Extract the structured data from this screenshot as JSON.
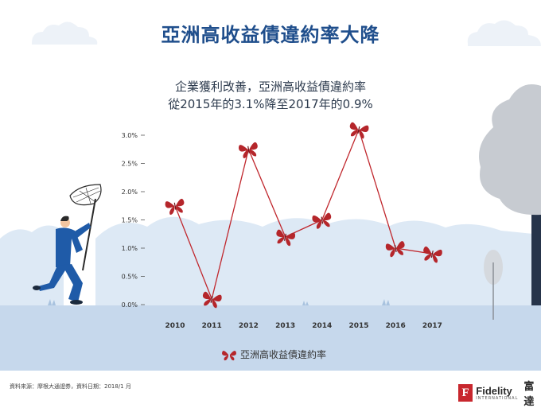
{
  "title": "亞洲高收益債違約率大降",
  "subtitle_line1": "企業獲利改善，亞洲高收益債違約率",
  "subtitle_line2": "從2015年的3.1%降至2017年的0.9%",
  "source": "資料來源：摩根大通證券，資料日期：2018/1 月",
  "logo": {
    "name": "Fidelity",
    "sub": "INTERNATIONAL",
    "chinese": "富達",
    "mark": "F"
  },
  "colors": {
    "title": "#1f4e8c",
    "line": "#c0272d",
    "butterfly": "#b5262b",
    "ground": "#c6d8ec",
    "hill": "#dde9f5"
  },
  "chart_data": {
    "type": "line",
    "categories": [
      "2010",
      "2011",
      "2012",
      "2013",
      "2014",
      "2015",
      "2016",
      "2017"
    ],
    "series": [
      {
        "name": "亞洲高收益債違約率",
        "values": [
          1.75,
          0.1,
          2.75,
          1.2,
          1.5,
          3.1,
          1.0,
          0.9
        ]
      }
    ],
    "ytick_labels": [
      "0.0%",
      "0.5%",
      "1.0%",
      "1.5%",
      "2.0%",
      "2.5%",
      "3.0%"
    ],
    "ylim": [
      0,
      3.0
    ],
    "ystep": 0.5,
    "marker": "butterfly",
    "legend_position": "bottom-center",
    "grid": false
  }
}
